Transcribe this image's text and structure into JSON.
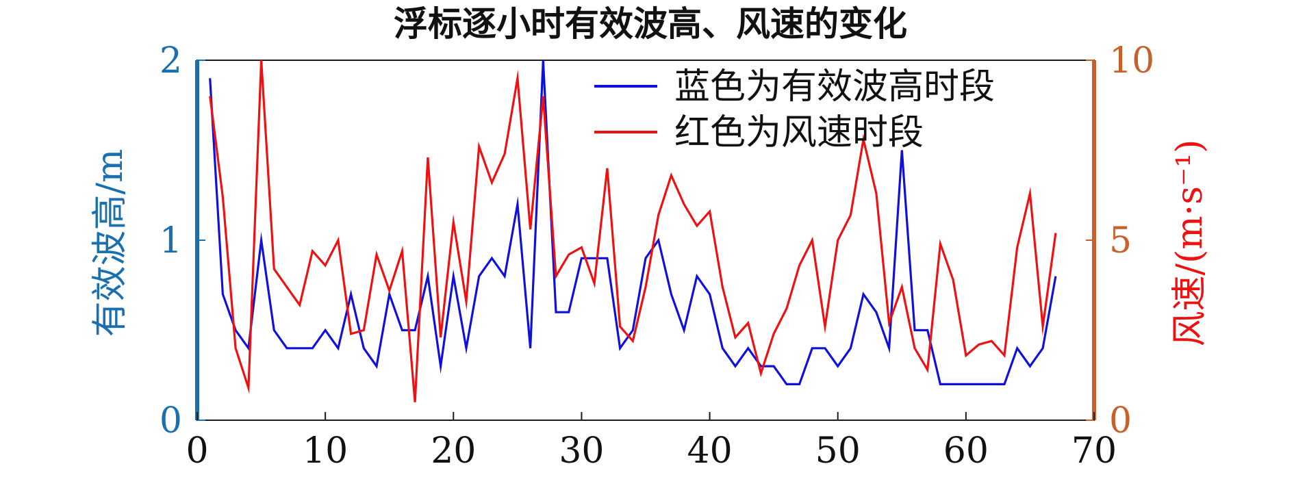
{
  "chart_data": {
    "type": "line",
    "title": "浮标逐小时有效波高、风速的变化",
    "x": [
      1,
      2,
      3,
      4,
      5,
      6,
      7,
      8,
      9,
      10,
      11,
      12,
      13,
      14,
      15,
      16,
      17,
      18,
      19,
      20,
      21,
      22,
      23,
      24,
      25,
      26,
      27,
      28,
      29,
      30,
      31,
      32,
      33,
      34,
      35,
      36,
      37,
      38,
      39,
      40,
      41,
      42,
      43,
      44,
      45,
      46,
      47,
      48,
      49,
      50,
      51,
      52,
      53,
      54,
      55,
      56,
      57,
      58,
      59,
      60,
      61,
      62,
      63,
      64,
      65,
      66,
      67
    ],
    "xlim": [
      0,
      70
    ],
    "xticks": [
      "0",
      "10",
      "20",
      "30",
      "40",
      "50",
      "60",
      "70"
    ],
    "left_axis": {
      "label": "有效波高/m",
      "ylim": [
        0,
        2
      ],
      "ticks": [
        "0",
        "1",
        "2"
      ],
      "color": "#1a6faf"
    },
    "right_axis": {
      "label": "风速/(m·s⁻¹)",
      "ylim": [
        0,
        10
      ],
      "ticks": [
        "0",
        "5",
        "10"
      ],
      "color": "#c8602a"
    },
    "series": [
      {
        "name": "蓝色为有效波高时段",
        "axis": "left",
        "color": "#1010dd",
        "values": [
          1.9,
          0.7,
          0.5,
          0.4,
          1.0,
          0.5,
          0.4,
          0.4,
          0.4,
          0.5,
          0.4,
          0.7,
          0.4,
          0.3,
          0.7,
          0.5,
          0.5,
          0.8,
          0.3,
          0.8,
          0.4,
          0.8,
          0.9,
          0.8,
          1.2,
          0.4,
          2.0,
          0.6,
          0.6,
          0.9,
          0.9,
          0.9,
          0.4,
          0.5,
          0.9,
          1.0,
          0.7,
          0.5,
          0.8,
          0.7,
          0.4,
          0.3,
          0.4,
          0.3,
          0.3,
          0.2,
          0.2,
          0.4,
          0.4,
          0.3,
          0.4,
          0.7,
          0.6,
          0.4,
          1.5,
          0.5,
          0.5,
          0.2,
          0.2,
          0.2,
          0.2,
          0.2,
          0.2,
          0.4,
          0.3,
          0.4,
          0.8
        ]
      },
      {
        "name": "红色为风速时段",
        "axis": "right",
        "color": "#ee1111",
        "values": [
          9.0,
          6.2,
          2.0,
          0.9,
          10.0,
          4.2,
          3.7,
          3.2,
          4.7,
          4.3,
          5.0,
          2.4,
          2.5,
          4.6,
          3.6,
          4.7,
          0.5,
          7.3,
          2.3,
          5.5,
          3.3,
          7.6,
          6.6,
          7.4,
          9.5,
          5.3,
          9.0,
          4.0,
          4.6,
          4.8,
          3.8,
          7.0,
          2.6,
          2.2,
          3.7,
          5.7,
          6.8,
          6.0,
          5.4,
          5.8,
          3.7,
          2.3,
          2.7,
          1.3,
          2.4,
          3.1,
          4.3,
          5.0,
          2.6,
          5.0,
          5.7,
          7.8,
          6.3,
          2.7,
          3.7,
          2.0,
          1.4,
          4.9,
          3.9,
          1.8,
          2.1,
          2.2,
          1.8,
          4.8,
          6.3,
          2.6,
          5.2
        ]
      }
    ],
    "legend_position": "top-right",
    "grid": false
  }
}
